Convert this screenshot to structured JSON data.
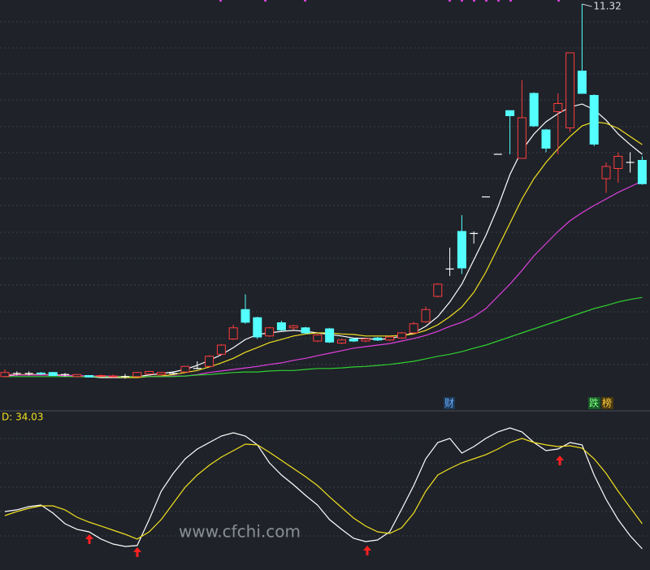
{
  "chart_data": [
    {
      "type": "candlestick",
      "open": [
        3.98,
        4.04,
        4.04,
        4.05,
        4.06,
        4.02,
        3.98,
        4.0,
        3.99,
        3.98,
        3.98,
        3.98,
        4.03,
        4.02,
        4.04,
        4.07,
        4.14,
        4.18,
        4.42,
        4.72,
        5.3,
        5.14,
        4.78,
        5.04,
        4.94,
        4.94,
        4.68,
        4.92,
        4.64,
        4.72,
        4.68,
        4.74,
        4.7,
        4.74,
        4.84,
        5.06,
        5.56,
        6.1,
        6.84,
        6.8,
        7.52,
        8.36,
        9.22,
        8.28,
        9.56,
        8.84,
        9.2,
        8.88,
        10.0,
        9.52,
        7.88,
        8.08,
        8.2,
        8.24
      ],
      "high": [
        4.12,
        4.08,
        4.08,
        4.07,
        4.07,
        4.05,
        4.03,
        4.01,
        4.02,
        4.02,
        4.03,
        4.07,
        4.09,
        4.07,
        4.08,
        4.19,
        4.28,
        4.4,
        4.62,
        5.0,
        5.6,
        5.16,
        4.96,
        5.08,
        5.0,
        4.96,
        4.82,
        4.94,
        4.72,
        4.74,
        4.74,
        4.76,
        4.78,
        4.86,
        5.06,
        5.36,
        5.82,
        6.52,
        7.16,
        6.84,
        7.52,
        8.36,
        9.22,
        9.82,
        9.58,
        8.86,
        9.56,
        10.36,
        11.32,
        9.54,
        8.2,
        8.4,
        8.4,
        8.32
      ],
      "low": [
        3.96,
        4.0,
        4.0,
        4.01,
        3.99,
        3.98,
        3.97,
        3.96,
        3.97,
        3.96,
        3.94,
        3.97,
        4.02,
        4.01,
        4.02,
        4.06,
        4.12,
        4.17,
        4.4,
        4.7,
        5.02,
        4.72,
        4.76,
        4.88,
        4.9,
        4.82,
        4.66,
        4.64,
        4.62,
        4.66,
        4.66,
        4.68,
        4.68,
        4.72,
        4.82,
        5.04,
        5.54,
        5.96,
        6.0,
        6.6,
        7.52,
        8.36,
        8.36,
        8.28,
        8.9,
        8.4,
        8.36,
        8.8,
        9.56,
        8.52,
        7.6,
        7.8,
        8.0,
        7.76
      ],
      "close": [
        4.06,
        4.04,
        4.04,
        4.04,
        4.0,
        4.02,
        4.02,
        3.97,
        4.0,
        3.99,
        3.98,
        4.06,
        4.08,
        4.06,
        4.04,
        4.18,
        4.14,
        4.38,
        4.6,
        4.94,
        5.05,
        4.76,
        4.94,
        4.9,
        4.98,
        4.84,
        4.8,
        4.66,
        4.7,
        4.68,
        4.72,
        4.7,
        4.76,
        4.84,
        5.02,
        5.3,
        5.8,
        6.1,
        6.12,
        6.8,
        7.52,
        8.36,
        9.12,
        9.08,
        8.92,
        8.48,
        9.36,
        10.36,
        9.56,
        8.56,
        8.12,
        8.32,
        8.2,
        7.78
      ],
      "up_color": "#ff3c3c",
      "down_color": "#54ffff",
      "flat_color": "#ffffff",
      "ylim": [
        3.32,
        11.32
      ],
      "lines": [
        {
          "color": "#ffffff",
          "values": [
            3.99,
            4.01,
            4.02,
            4.02,
            4.01,
            3.99,
            3.98,
            3.98,
            3.96,
            3.96,
            3.96,
            3.98,
            4.01,
            4.04,
            4.07,
            4.12,
            4.2,
            4.3,
            4.41,
            4.55,
            4.71,
            4.81,
            4.84,
            4.87,
            4.89,
            4.87,
            4.84,
            4.81,
            4.78,
            4.74,
            4.73,
            4.71,
            4.73,
            4.78,
            4.84,
            4.97,
            5.16,
            5.45,
            5.8,
            6.28,
            6.76,
            7.32,
            7.96,
            8.44,
            8.76,
            9.0,
            9.16,
            9.29,
            9.35,
            9.24,
            9.03,
            8.76,
            8.55,
            8.36
          ]
        },
        {
          "color": "#f0e020",
          "values": [
            4.02,
            4.02,
            4.02,
            4.02,
            4.02,
            4.01,
            3.99,
            3.99,
            3.98,
            3.98,
            3.96,
            3.96,
            3.98,
            3.99,
            4.02,
            4.06,
            4.1,
            4.17,
            4.25,
            4.34,
            4.46,
            4.55,
            4.65,
            4.71,
            4.78,
            4.82,
            4.84,
            4.84,
            4.82,
            4.81,
            4.78,
            4.78,
            4.78,
            4.79,
            4.82,
            4.89,
            5.0,
            5.16,
            5.35,
            5.64,
            6.04,
            6.52,
            7.0,
            7.48,
            7.88,
            8.2,
            8.47,
            8.71,
            8.92,
            9.0,
            8.97,
            8.87,
            8.71,
            8.55
          ]
        },
        {
          "color": "#e040e0",
          "values": [
            4.01,
            4.01,
            4.01,
            4.01,
            4.01,
            4.0,
            4.0,
            3.99,
            3.99,
            3.99,
            3.98,
            3.98,
            3.98,
            3.98,
            3.99,
            3.99,
            4.02,
            4.06,
            4.09,
            4.12,
            4.15,
            4.18,
            4.22,
            4.25,
            4.3,
            4.34,
            4.39,
            4.44,
            4.49,
            4.54,
            4.57,
            4.6,
            4.63,
            4.68,
            4.73,
            4.79,
            4.87,
            4.97,
            5.05,
            5.16,
            5.32,
            5.56,
            5.8,
            6.07,
            6.36,
            6.6,
            6.84,
            7.05,
            7.21,
            7.35,
            7.48,
            7.61,
            7.72,
            7.83
          ]
        },
        {
          "color": "#30d030",
          "values": [
            3.98,
            3.98,
            3.98,
            3.98,
            3.98,
            3.98,
            3.98,
            3.98,
            3.98,
            3.98,
            3.98,
            3.98,
            3.98,
            3.98,
            3.98,
            3.99,
            4.01,
            4.02,
            4.04,
            4.06,
            4.07,
            4.07,
            4.09,
            4.1,
            4.1,
            4.12,
            4.14,
            4.14,
            4.15,
            4.17,
            4.18,
            4.2,
            4.22,
            4.25,
            4.28,
            4.33,
            4.38,
            4.42,
            4.47,
            4.54,
            4.6,
            4.68,
            4.76,
            4.84,
            4.92,
            5.0,
            5.08,
            5.16,
            5.24,
            5.32,
            5.38,
            5.45,
            5.5,
            5.54
          ]
        }
      ],
      "flags": [
        "财",
        "跌",
        "榜"
      ],
      "watermark": "www.cfchi.com"
    },
    {
      "type": "line",
      "label": "D: 34.03",
      "ylim": [
        -10,
        110
      ],
      "series": [
        {
          "color": "#ffffff",
          "values": [
            35,
            36.3,
            38.8,
            40,
            33.8,
            25.6,
            21.3,
            19.4,
            13.8,
            10,
            8.1,
            8.8,
            28.8,
            50.6,
            64.4,
            75.6,
            83.1,
            88.1,
            93.1,
            95.6,
            93.1,
            86.3,
            72.5,
            63.1,
            55.6,
            47.5,
            40,
            28.8,
            21.3,
            14.4,
            11.9,
            13.1,
            19.4,
            36.9,
            55,
            75.6,
            88.1,
            91.3,
            80,
            85,
            91.3,
            96.3,
            99.4,
            96.3,
            88.1,
            81.9,
            83.1,
            88.1,
            86.3,
            63.1,
            44.4,
            28.8,
            16.3,
            6.3
          ]
        },
        {
          "color": "#f0e020",
          "values": [
            31.9,
            35,
            37.5,
            39.4,
            39.4,
            36.3,
            30.6,
            26.9,
            23.8,
            20.6,
            17.5,
            13.8,
            19.4,
            28.8,
            41.3,
            53.8,
            63.1,
            70.6,
            76.9,
            81.9,
            86.9,
            86.3,
            80.6,
            74.4,
            68.1,
            61.9,
            55,
            46.3,
            38.1,
            30,
            23.8,
            19.4,
            18.1,
            22.5,
            33.8,
            50.6,
            63.1,
            68.1,
            72.5,
            75.6,
            78.8,
            83.1,
            88.1,
            91.3,
            88.1,
            86.3,
            85,
            85.6,
            83.8,
            75.6,
            64.4,
            50.6,
            38.1,
            25.6
          ]
        }
      ]
    }
  ]
}
